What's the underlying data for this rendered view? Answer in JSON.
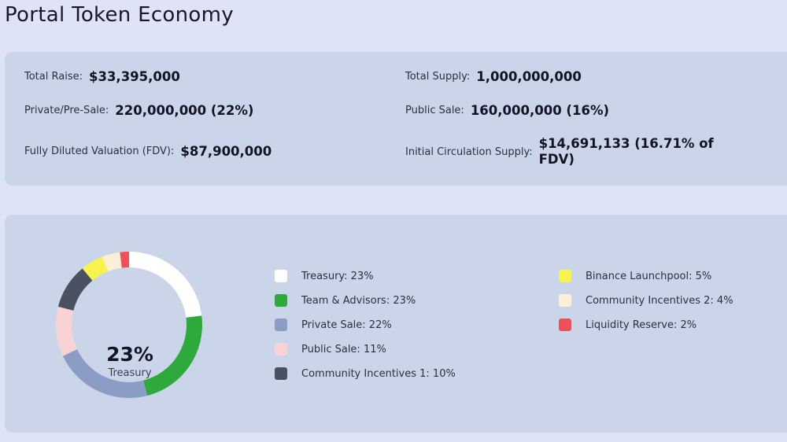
{
  "title": "Portal  Token Economy",
  "stats": {
    "total_raise_label": "Total Raise:",
    "total_raise_value": "$33,395,000",
    "total_supply_label": "Total Supply:",
    "total_supply_value": "1,000,000,000",
    "private_label": "Private/Pre-Sale:",
    "private_value": "220,000,000 (22%)",
    "public_label": "Public Sale:",
    "public_value": "160,000,000 (16%)",
    "fdv_label": "Fully Diluted Valuation (FDV):",
    "fdv_value": "$87,900,000",
    "circ_label": "Initial Circulation Supply:",
    "circ_value": "$14,691,133 (16.71% of FDV)"
  },
  "chart_data": {
    "type": "pie",
    "center_value": "23%",
    "center_label": "Treasury",
    "slices": [
      {
        "label": "Treasury: 23%",
        "value": 23,
        "color": "#ffffff"
      },
      {
        "label": "Team & Advisors: 23%",
        "value": 23,
        "color": "#2eaa3d"
      },
      {
        "label": "Private Sale: 22%",
        "value": 22,
        "color": "#8c9dc5"
      },
      {
        "label": "Public Sale: 11%",
        "value": 11,
        "color": "#f9d3d4"
      },
      {
        "label": "Community Incentives 1: 10%",
        "value": 10,
        "color": "#4a5160"
      },
      {
        "label": "Binance Launchpool: 5%",
        "value": 5,
        "color": "#f8f34c"
      },
      {
        "label": "Community Incentives 2: 4%",
        "value": 4,
        "color": "#fcefd8"
      },
      {
        "label": "Liquidity Reserve: 2%",
        "value": 2,
        "color": "#ef4f57"
      }
    ]
  }
}
